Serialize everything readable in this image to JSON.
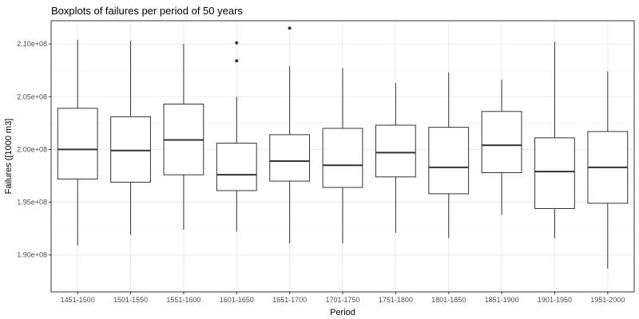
{
  "chart_data": {
    "type": "boxplot",
    "title": "Boxplots of failures per period of 50 years",
    "xlabel": "Period",
    "ylabel": "Failures ([1000 m3]",
    "ylim": [
      186500000,
      212200000
    ],
    "yticks": [
      190000000,
      195000000,
      200000000,
      205000000,
      210000000
    ],
    "ytick_labels": [
      "1.90e+08",
      "1.95e+08",
      "2.00e+08",
      "2.05e+08",
      "2.10e+08"
    ],
    "grid": true,
    "categories": [
      "1451-1500",
      "1501-1550",
      "1551-1600",
      "1601-1650",
      "1651-1700",
      "1701-1750",
      "1751-1800",
      "1801-1850",
      "1851-1900",
      "1901-1950",
      "1951-2000"
    ],
    "boxes": [
      {
        "lower_whisker": 190900000,
        "q1": 197200000,
        "median": 200000000,
        "q3": 203900000,
        "upper_whisker": 210400000,
        "outliers": []
      },
      {
        "lower_whisker": 191900000,
        "q1": 196900000,
        "median": 199900000,
        "q3": 203100000,
        "upper_whisker": 210300000,
        "outliers": []
      },
      {
        "lower_whisker": 192400000,
        "q1": 197600000,
        "median": 200900000,
        "q3": 204300000,
        "upper_whisker": 210000000,
        "outliers": []
      },
      {
        "lower_whisker": 192200000,
        "q1": 196100000,
        "median": 197600000,
        "q3": 200600000,
        "upper_whisker": 205000000,
        "outliers": [
          208400000,
          210100000
        ]
      },
      {
        "lower_whisker": 191100000,
        "q1": 197000000,
        "median": 198900000,
        "q3": 201400000,
        "upper_whisker": 207900000,
        "outliers": [
          211500000
        ]
      },
      {
        "lower_whisker": 191100000,
        "q1": 196400000,
        "median": 198500000,
        "q3": 202000000,
        "upper_whisker": 207700000,
        "outliers": []
      },
      {
        "lower_whisker": 192100000,
        "q1": 197400000,
        "median": 199700000,
        "q3": 202300000,
        "upper_whisker": 206300000,
        "outliers": []
      },
      {
        "lower_whisker": 191600000,
        "q1": 195800000,
        "median": 198300000,
        "q3": 202100000,
        "upper_whisker": 207300000,
        "outliers": []
      },
      {
        "lower_whisker": 193800000,
        "q1": 197800000,
        "median": 200400000,
        "q3": 203600000,
        "upper_whisker": 206600000,
        "outliers": []
      },
      {
        "lower_whisker": 191600000,
        "q1": 194400000,
        "median": 197900000,
        "q3": 201100000,
        "upper_whisker": 210200000,
        "outliers": []
      },
      {
        "lower_whisker": 188700000,
        "q1": 194900000,
        "median": 198300000,
        "q3": 201700000,
        "upper_whisker": 207400000,
        "outliers": []
      }
    ]
  }
}
